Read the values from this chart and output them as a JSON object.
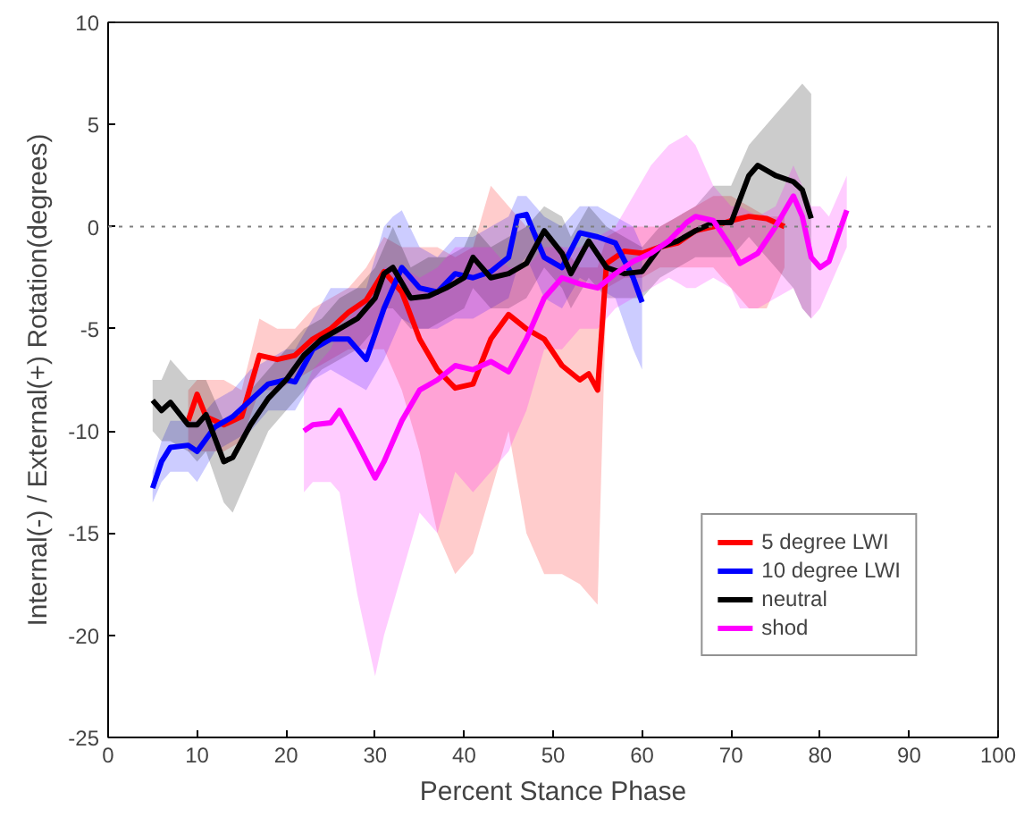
{
  "chart_data": {
    "type": "line",
    "xlabel": "Percent Stance Phase",
    "ylabel": "Internal(-) / External(+) Rotation(degrees)",
    "xlim": [
      0,
      100
    ],
    "xticks": [
      0,
      10,
      20,
      30,
      40,
      50,
      60,
      70,
      80,
      90,
      100
    ],
    "ylim": [
      -25,
      10
    ],
    "yticks": [
      -25,
      -20,
      -15,
      -10,
      -5,
      0,
      5,
      10
    ],
    "grid": false,
    "legend": "bottom right",
    "marker": "none",
    "line_style": "solid",
    "ref_lines": [
      {
        "axis": "y",
        "value": 0,
        "color": "#808080",
        "line_style": "dotted"
      }
    ],
    "series": [
      {
        "name": "5 degree LWI",
        "color": "#ff0000",
        "x": [
          9,
          10,
          11,
          13,
          15,
          17,
          19,
          21,
          23,
          25,
          27,
          29,
          31,
          33,
          35,
          37,
          39,
          41,
          43,
          45,
          47,
          49,
          51,
          53,
          54,
          55,
          56,
          58,
          60,
          62,
          64,
          66,
          68,
          70,
          72,
          74,
          76
        ],
        "values": [
          -9.5,
          -8.2,
          -9.3,
          -9.7,
          -9.3,
          -6.3,
          -6.5,
          -6.3,
          -5.5,
          -5,
          -4.2,
          -3.6,
          -2.2,
          -3.2,
          -5.5,
          -7,
          -7.9,
          -7.7,
          -5.5,
          -4.3,
          -5,
          -5.5,
          -6.8,
          -7.5,
          -7.2,
          -8,
          -1.8,
          -1.2,
          -1.3,
          -1,
          -0.8,
          -0.2,
          0,
          0.3,
          0.5,
          0.4,
          0
        ],
        "lower": [
          -11,
          -11,
          -11,
          -11,
          -10.5,
          -8,
          -8,
          -7.5,
          -7,
          -6.5,
          -6,
          -6,
          -6,
          -8,
          -11,
          -15,
          -17,
          -16,
          -13,
          -10,
          -15,
          -17,
          -17,
          -17.5,
          -18,
          -18.5,
          -3,
          -2.5,
          -2.5,
          -2,
          -2,
          -2,
          -2,
          -3,
          -4,
          -4,
          -2
        ],
        "upper": [
          -8,
          -7.5,
          -7.5,
          -7.5,
          -8,
          -4.5,
          -5,
          -5,
          -4,
          -3.5,
          -3,
          -2,
          -0.5,
          -1,
          -1,
          -1,
          -1.5,
          -1,
          2,
          1,
          0,
          -0.5,
          -1,
          -2,
          -2,
          -2,
          -0.5,
          0,
          0,
          0,
          0.5,
          1,
          1.5,
          1.5,
          1,
          0.5,
          0.5
        ]
      },
      {
        "name": "10 degree LWI",
        "color": "#0000ff",
        "x": [
          5,
          6,
          7,
          9,
          10,
          12,
          14,
          16,
          18,
          20,
          21,
          23,
          25,
          27,
          29,
          31,
          32,
          33,
          35,
          37,
          39,
          41,
          43,
          45,
          46,
          47,
          49,
          51,
          53,
          55,
          57,
          59,
          60
        ],
        "values": [
          -12.8,
          -11.5,
          -10.8,
          -10.7,
          -11,
          -9.8,
          -9.3,
          -8.5,
          -7.7,
          -7.5,
          -7.6,
          -6,
          -5.5,
          -5.5,
          -6.5,
          -4,
          -3,
          -2,
          -3,
          -3.2,
          -2.3,
          -2.5,
          -2.2,
          -1.5,
          0.5,
          0.6,
          -1.5,
          -2,
          -0.3,
          -0.5,
          -0.8,
          -2.5,
          -3.7
        ],
        "lower": [
          -13.5,
          -12.5,
          -12,
          -12,
          -12.5,
          -11,
          -10.5,
          -10,
          -9,
          -9,
          -9,
          -7.5,
          -7,
          -7.5,
          -8,
          -6.5,
          -5.5,
          -4.5,
          -5,
          -5,
          -4.5,
          -4.5,
          -4,
          -3.5,
          -2,
          -1.5,
          -3.5,
          -4,
          -2.5,
          -3,
          -3.5,
          -6,
          -7
        ],
        "upper": [
          -12,
          -10.5,
          -9.5,
          -9.5,
          -9.5,
          -8.5,
          -8,
          -7,
          -6.5,
          -6,
          -6,
          -4.5,
          -3,
          -3,
          -3,
          0,
          0.5,
          0.8,
          -1,
          -1.5,
          -0.5,
          -0.5,
          0,
          0.5,
          1.5,
          1.5,
          0.5,
          0,
          1,
          1,
          0.5,
          0,
          -1
        ]
      },
      {
        "name": "neutral",
        "color": "#000000",
        "x": [
          5,
          6,
          7,
          9,
          10,
          11,
          13,
          14,
          16,
          18,
          20,
          22,
          24,
          26,
          28,
          30,
          31,
          32,
          34,
          36,
          38,
          40,
          41,
          43,
          45,
          47,
          49,
          51,
          52,
          54,
          56,
          58,
          60,
          62,
          64,
          66,
          68,
          70,
          72,
          73,
          75,
          77,
          78,
          79
        ],
        "values": [
          -8.5,
          -9,
          -8.6,
          -9.7,
          -9.7,
          -9.2,
          -11.5,
          -11.3,
          -9.7,
          -8.4,
          -7.5,
          -6.3,
          -5.5,
          -5,
          -4.5,
          -3.5,
          -2.3,
          -2,
          -3.5,
          -3.4,
          -3,
          -2.5,
          -1.5,
          -2.5,
          -2.3,
          -1.8,
          -0.2,
          -1.3,
          -2.3,
          -0.7,
          -2,
          -2.3,
          -2.2,
          -1,
          -0.7,
          -0.2,
          0.2,
          0.2,
          2.5,
          3,
          2.5,
          2.2,
          1.8,
          0.4
        ],
        "lower": [
          -10,
          -10.5,
          -10.5,
          -11,
          -11.5,
          -11,
          -13.5,
          -14,
          -12,
          -10,
          -9,
          -8,
          -7,
          -6.5,
          -6,
          -5,
          -4,
          -4,
          -5,
          -5,
          -4.5,
          -4,
          -3,
          -4,
          -4,
          -3.5,
          -2,
          -3,
          -4,
          -2.5,
          -3.5,
          -3.5,
          -3.5,
          -2.5,
          -2,
          -1.5,
          -1.5,
          -1.5,
          -0.5,
          -1,
          -2,
          -3,
          -4,
          -4.5
        ],
        "upper": [
          -7.5,
          -7.5,
          -6.5,
          -7.5,
          -7.5,
          -7.5,
          -9.5,
          -9.5,
          -8,
          -7,
          -6,
          -5,
          -4.5,
          -3.5,
          -3,
          -2,
          -1,
          0,
          -2,
          -1.5,
          -1.5,
          -1,
          0,
          -1,
          -0.5,
          0,
          1,
          0.5,
          -0.5,
          1,
          0,
          -0.5,
          -1,
          0,
          0.5,
          1,
          2,
          2,
          4,
          4.5,
          5.5,
          6.5,
          7,
          6.5
        ]
      },
      {
        "name": "shod",
        "color": "#ff00ff",
        "x": [
          22,
          23,
          25,
          26,
          28,
          30,
          31,
          33,
          35,
          37,
          39,
          41,
          43,
          45,
          47,
          49,
          51,
          53,
          55,
          57,
          59,
          61,
          63,
          65,
          66,
          68,
          70,
          71,
          73,
          75,
          77,
          78,
          79,
          80,
          81,
          83
        ],
        "values": [
          -10,
          -9.7,
          -9.6,
          -9,
          -10.6,
          -12.3,
          -11.5,
          -9.5,
          -8,
          -7.5,
          -6.8,
          -7,
          -6.6,
          -7.1,
          -5.5,
          -3.5,
          -2.5,
          -2.8,
          -3,
          -2.3,
          -1.7,
          -1.3,
          -0.7,
          0.2,
          0.5,
          0.3,
          -1,
          -1.8,
          -1.3,
          0,
          1.5,
          0.5,
          -1.5,
          -2,
          -1.7,
          0.8
        ],
        "lower": [
          -13,
          -12.5,
          -12.5,
          -13,
          -18,
          -22,
          -20,
          -17,
          -14,
          -15,
          -12,
          -13,
          -12,
          -11,
          -9,
          -6,
          -6,
          -5,
          -5,
          -4,
          -3.5,
          -3,
          -2.5,
          -3,
          -3,
          -2.5,
          -3,
          -4,
          -4,
          -3.5,
          -3,
          -4,
          -4.5,
          -4,
          -3,
          -1
        ],
        "upper": [
          -8,
          -7,
          -6,
          -5,
          -4,
          -3,
          -2,
          -2,
          -2.5,
          -2,
          -1,
          -1,
          -1,
          -2,
          -2,
          -1,
          -1,
          -1,
          -0.5,
          0,
          1.5,
          3,
          4,
          4.5,
          4,
          2,
          1,
          1,
          0.5,
          1,
          3,
          2,
          1,
          1,
          0.5,
          2.5
        ]
      }
    ]
  }
}
